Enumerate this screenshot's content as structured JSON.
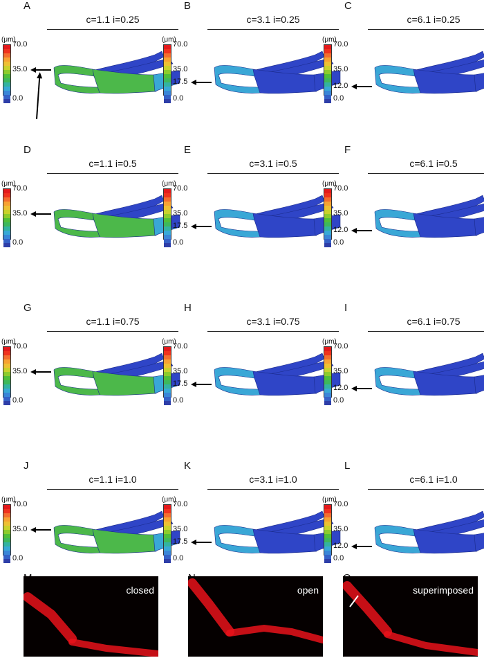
{
  "colorbar_colors": [
    "#e41a1c",
    "#f0321e",
    "#f46d2f",
    "#f7a233",
    "#eec034",
    "#c9d22c",
    "#8dcc2c",
    "#4fbf3a",
    "#3db85c",
    "#33b3a1",
    "#38a9d6",
    "#3a86d8",
    "#3561c7",
    "#2e3ea8"
  ],
  "colors": {
    "model_blue": "#2f45c7",
    "model_green": "#4cb84a",
    "model_cyan": "#3aa7d6",
    "micro_red": "#e8121a"
  },
  "unit": "(μm)",
  "panels": [
    {
      "label": "A",
      "title": "c=1.1 i=0.25",
      "ticks": [
        "70.0",
        "35.0",
        "0.0"
      ],
      "arrow_value": "35.0",
      "state": "green"
    },
    {
      "label": "B",
      "title": "c=3.1 i=0.25",
      "ticks": [
        "70.0",
        "35.0",
        "17.5",
        "0.0"
      ],
      "arrow_value": "17.5",
      "state": "blue"
    },
    {
      "label": "C",
      "title": "c=6.1 i=0.25",
      "ticks": [
        "70.0",
        "35.0",
        "12.0",
        "0.0"
      ],
      "arrow_value": "12.0",
      "state": "blue"
    },
    {
      "label": "D",
      "title": "c=1.1 i=0.5",
      "ticks": [
        "70.0",
        "35.0",
        "0.0"
      ],
      "arrow_value": "35.0",
      "state": "green"
    },
    {
      "label": "E",
      "title": "c=3.1 i=0.5",
      "ticks": [
        "70.0",
        "35.0",
        "17.5",
        "0.0"
      ],
      "arrow_value": "17.5",
      "state": "blue"
    },
    {
      "label": "F",
      "title": "c=6.1 i=0.5",
      "ticks": [
        "70.0",
        "35.0",
        "12.0",
        "0.0"
      ],
      "arrow_value": "12.0",
      "state": "blue"
    },
    {
      "label": "G",
      "title": "c=1.1 i=0.75",
      "ticks": [
        "70.0",
        "35.0",
        "0.0"
      ],
      "arrow_value": "35.0",
      "state": "green"
    },
    {
      "label": "H",
      "title": "c=3.1 i=0.75",
      "ticks": [
        "70.0",
        "35.0",
        "17.5",
        "0.0"
      ],
      "arrow_value": "17.5",
      "state": "blue"
    },
    {
      "label": "I",
      "title": "c=6.1 i=0.75",
      "ticks": [
        "70.0",
        "35.0",
        "12.0",
        "0.0"
      ],
      "arrow_value": "12.0",
      "state": "blue"
    },
    {
      "label": "J",
      "title": "c=1.1 i=1.0",
      "ticks": [
        "70.0",
        "35.0",
        "0.0"
      ],
      "arrow_value": "35.0",
      "state": "green"
    },
    {
      "label": "K",
      "title": "c=3.1 i=1.0",
      "ticks": [
        "70.0",
        "35.0",
        "17.5",
        "0.0"
      ],
      "arrow_value": "17.5",
      "state": "blue"
    },
    {
      "label": "L",
      "title": "c=6.1 i=1.0",
      "ticks": [
        "70.0",
        "35.0",
        "12.0",
        "0.0"
      ],
      "arrow_value": "12.0",
      "state": "blue"
    }
  ],
  "micrographs": [
    {
      "label": "M",
      "caption": "closed"
    },
    {
      "label": "N",
      "caption": "open"
    },
    {
      "label": "O",
      "caption": "superimposed"
    }
  ]
}
